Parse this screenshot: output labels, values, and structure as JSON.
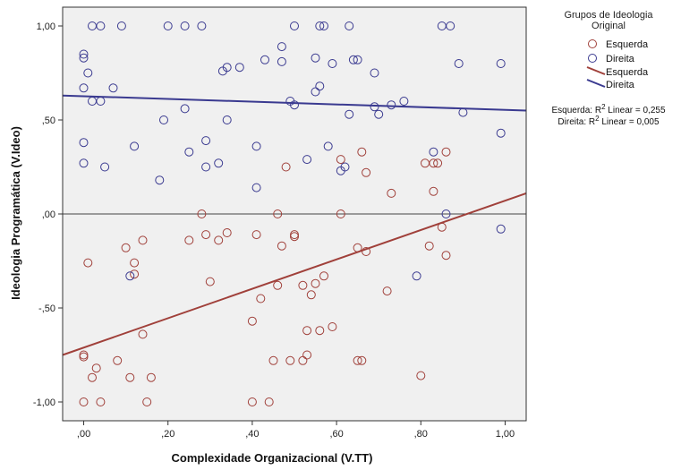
{
  "chart_data": {
    "type": "scatter",
    "xlabel": "Complexidade Organizacional (V.TT)",
    "ylabel": "Ideologia Programática (V.Ideo)",
    "xlim": [
      -0.05,
      1.05
    ],
    "ylim": [
      -1.1,
      1.1
    ],
    "x_ticks": [
      0,
      0.2,
      0.4,
      0.6,
      0.8,
      1.0
    ],
    "x_tick_labels": [
      ",00",
      ",20",
      ",40",
      ",60",
      ",80",
      "1,00"
    ],
    "y_ticks": [
      -1,
      -0.5,
      0,
      0.5,
      1
    ],
    "y_tick_labels": [
      "-1,00",
      "-,50",
      ",00",
      ",50",
      "1,00"
    ],
    "reference_line_y": 0,
    "grid": false,
    "plot_background": "#f0f0f0",
    "legend": {
      "title_line1": "Grupos de Ideologia",
      "title_line2": "Original",
      "placement": "right",
      "marker_entries": [
        "Esquerda",
        "Direita"
      ],
      "line_entries": [
        "Esquerda",
        "Direita"
      ]
    },
    "annotations": {
      "esquerda_prefix": "Esquerda: R",
      "esquerda_suffix": " Linear = 0,255",
      "direita_prefix": "Direita: R",
      "direita_suffix": " Linear = 0,005",
      "sup": "2"
    },
    "series": [
      {
        "name": "Esquerda",
        "color": "#a0403a",
        "marker": "open-circle",
        "points": [
          [
            0,
            -0.75
          ],
          [
            0,
            -0.76
          ],
          [
            0,
            -1.0
          ],
          [
            0.01,
            -0.26
          ],
          [
            0.02,
            -0.87
          ],
          [
            0.03,
            -0.82
          ],
          [
            0.04,
            -1.0
          ],
          [
            0.08,
            -0.78
          ],
          [
            0.1,
            -0.18
          ],
          [
            0.12,
            -0.26
          ],
          [
            0.12,
            -0.32
          ],
          [
            0.11,
            -0.87
          ],
          [
            0.14,
            -0.14
          ],
          [
            0.14,
            -0.64
          ],
          [
            0.15,
            -1.0
          ],
          [
            0.16,
            -0.87
          ],
          [
            0.25,
            -0.14
          ],
          [
            0.28,
            0.0
          ],
          [
            0.29,
            -0.11
          ],
          [
            0.3,
            -0.36
          ],
          [
            0.32,
            -0.14
          ],
          [
            0.34,
            -0.1
          ],
          [
            0.4,
            -0.57
          ],
          [
            0.41,
            -0.11
          ],
          [
            0.4,
            -1.0
          ],
          [
            0.42,
            -0.45
          ],
          [
            0.44,
            -1.0
          ],
          [
            0.45,
            -0.78
          ],
          [
            0.46,
            -0.38
          ],
          [
            0.46,
            0.0
          ],
          [
            0.47,
            -0.17
          ],
          [
            0.48,
            0.25
          ],
          [
            0.49,
            -0.78
          ],
          [
            0.5,
            -0.11
          ],
          [
            0.5,
            -0.12
          ],
          [
            0.52,
            -0.38
          ],
          [
            0.52,
            -0.78
          ],
          [
            0.53,
            -0.75
          ],
          [
            0.53,
            -0.62
          ],
          [
            0.54,
            -0.43
          ],
          [
            0.55,
            -0.37
          ],
          [
            0.56,
            -0.62
          ],
          [
            0.57,
            -0.33
          ],
          [
            0.59,
            -0.6
          ],
          [
            0.61,
            0.29
          ],
          [
            0.61,
            0.0
          ],
          [
            0.65,
            -0.18
          ],
          [
            0.65,
            -0.78
          ],
          [
            0.66,
            -0.78
          ],
          [
            0.66,
            0.33
          ],
          [
            0.67,
            0.22
          ],
          [
            0.67,
            -0.2
          ],
          [
            0.72,
            -0.41
          ],
          [
            0.73,
            0.11
          ],
          [
            0.8,
            -0.86
          ],
          [
            0.81,
            0.27
          ],
          [
            0.82,
            -0.17
          ],
          [
            0.83,
            0.27
          ],
          [
            0.83,
            0.12
          ],
          [
            0.84,
            0.27
          ],
          [
            0.85,
            -0.07
          ],
          [
            0.86,
            0.33
          ],
          [
            0.86,
            -0.22
          ]
        ],
        "fit_line": [
          [
            -0.05,
            -0.75
          ],
          [
            1.05,
            0.11
          ]
        ]
      },
      {
        "name": "Direita",
        "color": "#3a3a90",
        "marker": "open-circle",
        "points": [
          [
            0,
            0.85
          ],
          [
            0,
            0.83
          ],
          [
            0,
            0.67
          ],
          [
            0,
            0.38
          ],
          [
            0,
            0.27
          ],
          [
            0.01,
            0.75
          ],
          [
            0.02,
            1.0
          ],
          [
            0.02,
            0.6
          ],
          [
            0.04,
            1.0
          ],
          [
            0.04,
            0.6
          ],
          [
            0.05,
            0.25
          ],
          [
            0.07,
            0.67
          ],
          [
            0.09,
            1.0
          ],
          [
            0.11,
            -0.33
          ],
          [
            0.12,
            0.36
          ],
          [
            0.18,
            0.18
          ],
          [
            0.19,
            0.5
          ],
          [
            0.2,
            1.0
          ],
          [
            0.24,
            1.0
          ],
          [
            0.24,
            0.56
          ],
          [
            0.25,
            0.33
          ],
          [
            0.28,
            1.0
          ],
          [
            0.29,
            0.39
          ],
          [
            0.29,
            0.25
          ],
          [
            0.32,
            0.27
          ],
          [
            0.33,
            0.76
          ],
          [
            0.34,
            0.78
          ],
          [
            0.34,
            0.5
          ],
          [
            0.37,
            0.78
          ],
          [
            0.41,
            0.36
          ],
          [
            0.41,
            0.14
          ],
          [
            0.43,
            0.82
          ],
          [
            0.47,
            0.89
          ],
          [
            0.47,
            0.81
          ],
          [
            0.49,
            0.6
          ],
          [
            0.5,
            1.0
          ],
          [
            0.5,
            0.58
          ],
          [
            0.53,
            0.29
          ],
          [
            0.55,
            0.83
          ],
          [
            0.55,
            0.65
          ],
          [
            0.56,
            1.0
          ],
          [
            0.56,
            0.68
          ],
          [
            0.57,
            1.0
          ],
          [
            0.58,
            0.36
          ],
          [
            0.59,
            0.8
          ],
          [
            0.61,
            0.23
          ],
          [
            0.62,
            0.25
          ],
          [
            0.63,
            1.0
          ],
          [
            0.63,
            0.53
          ],
          [
            0.64,
            0.82
          ],
          [
            0.65,
            0.82
          ],
          [
            0.69,
            0.75
          ],
          [
            0.69,
            0.57
          ],
          [
            0.7,
            0.53
          ],
          [
            0.73,
            0.58
          ],
          [
            0.76,
            0.6
          ],
          [
            0.79,
            -0.33
          ],
          [
            0.83,
            0.33
          ],
          [
            0.85,
            1.0
          ],
          [
            0.86,
            0.0
          ],
          [
            0.87,
            1.0
          ],
          [
            0.89,
            0.8
          ],
          [
            0.9,
            0.54
          ],
          [
            0.99,
            0.8
          ],
          [
            0.99,
            0.43
          ],
          [
            0.99,
            -0.08
          ]
        ],
        "fit_line": [
          [
            -0.05,
            0.63
          ],
          [
            1.05,
            0.55
          ]
        ]
      }
    ]
  }
}
